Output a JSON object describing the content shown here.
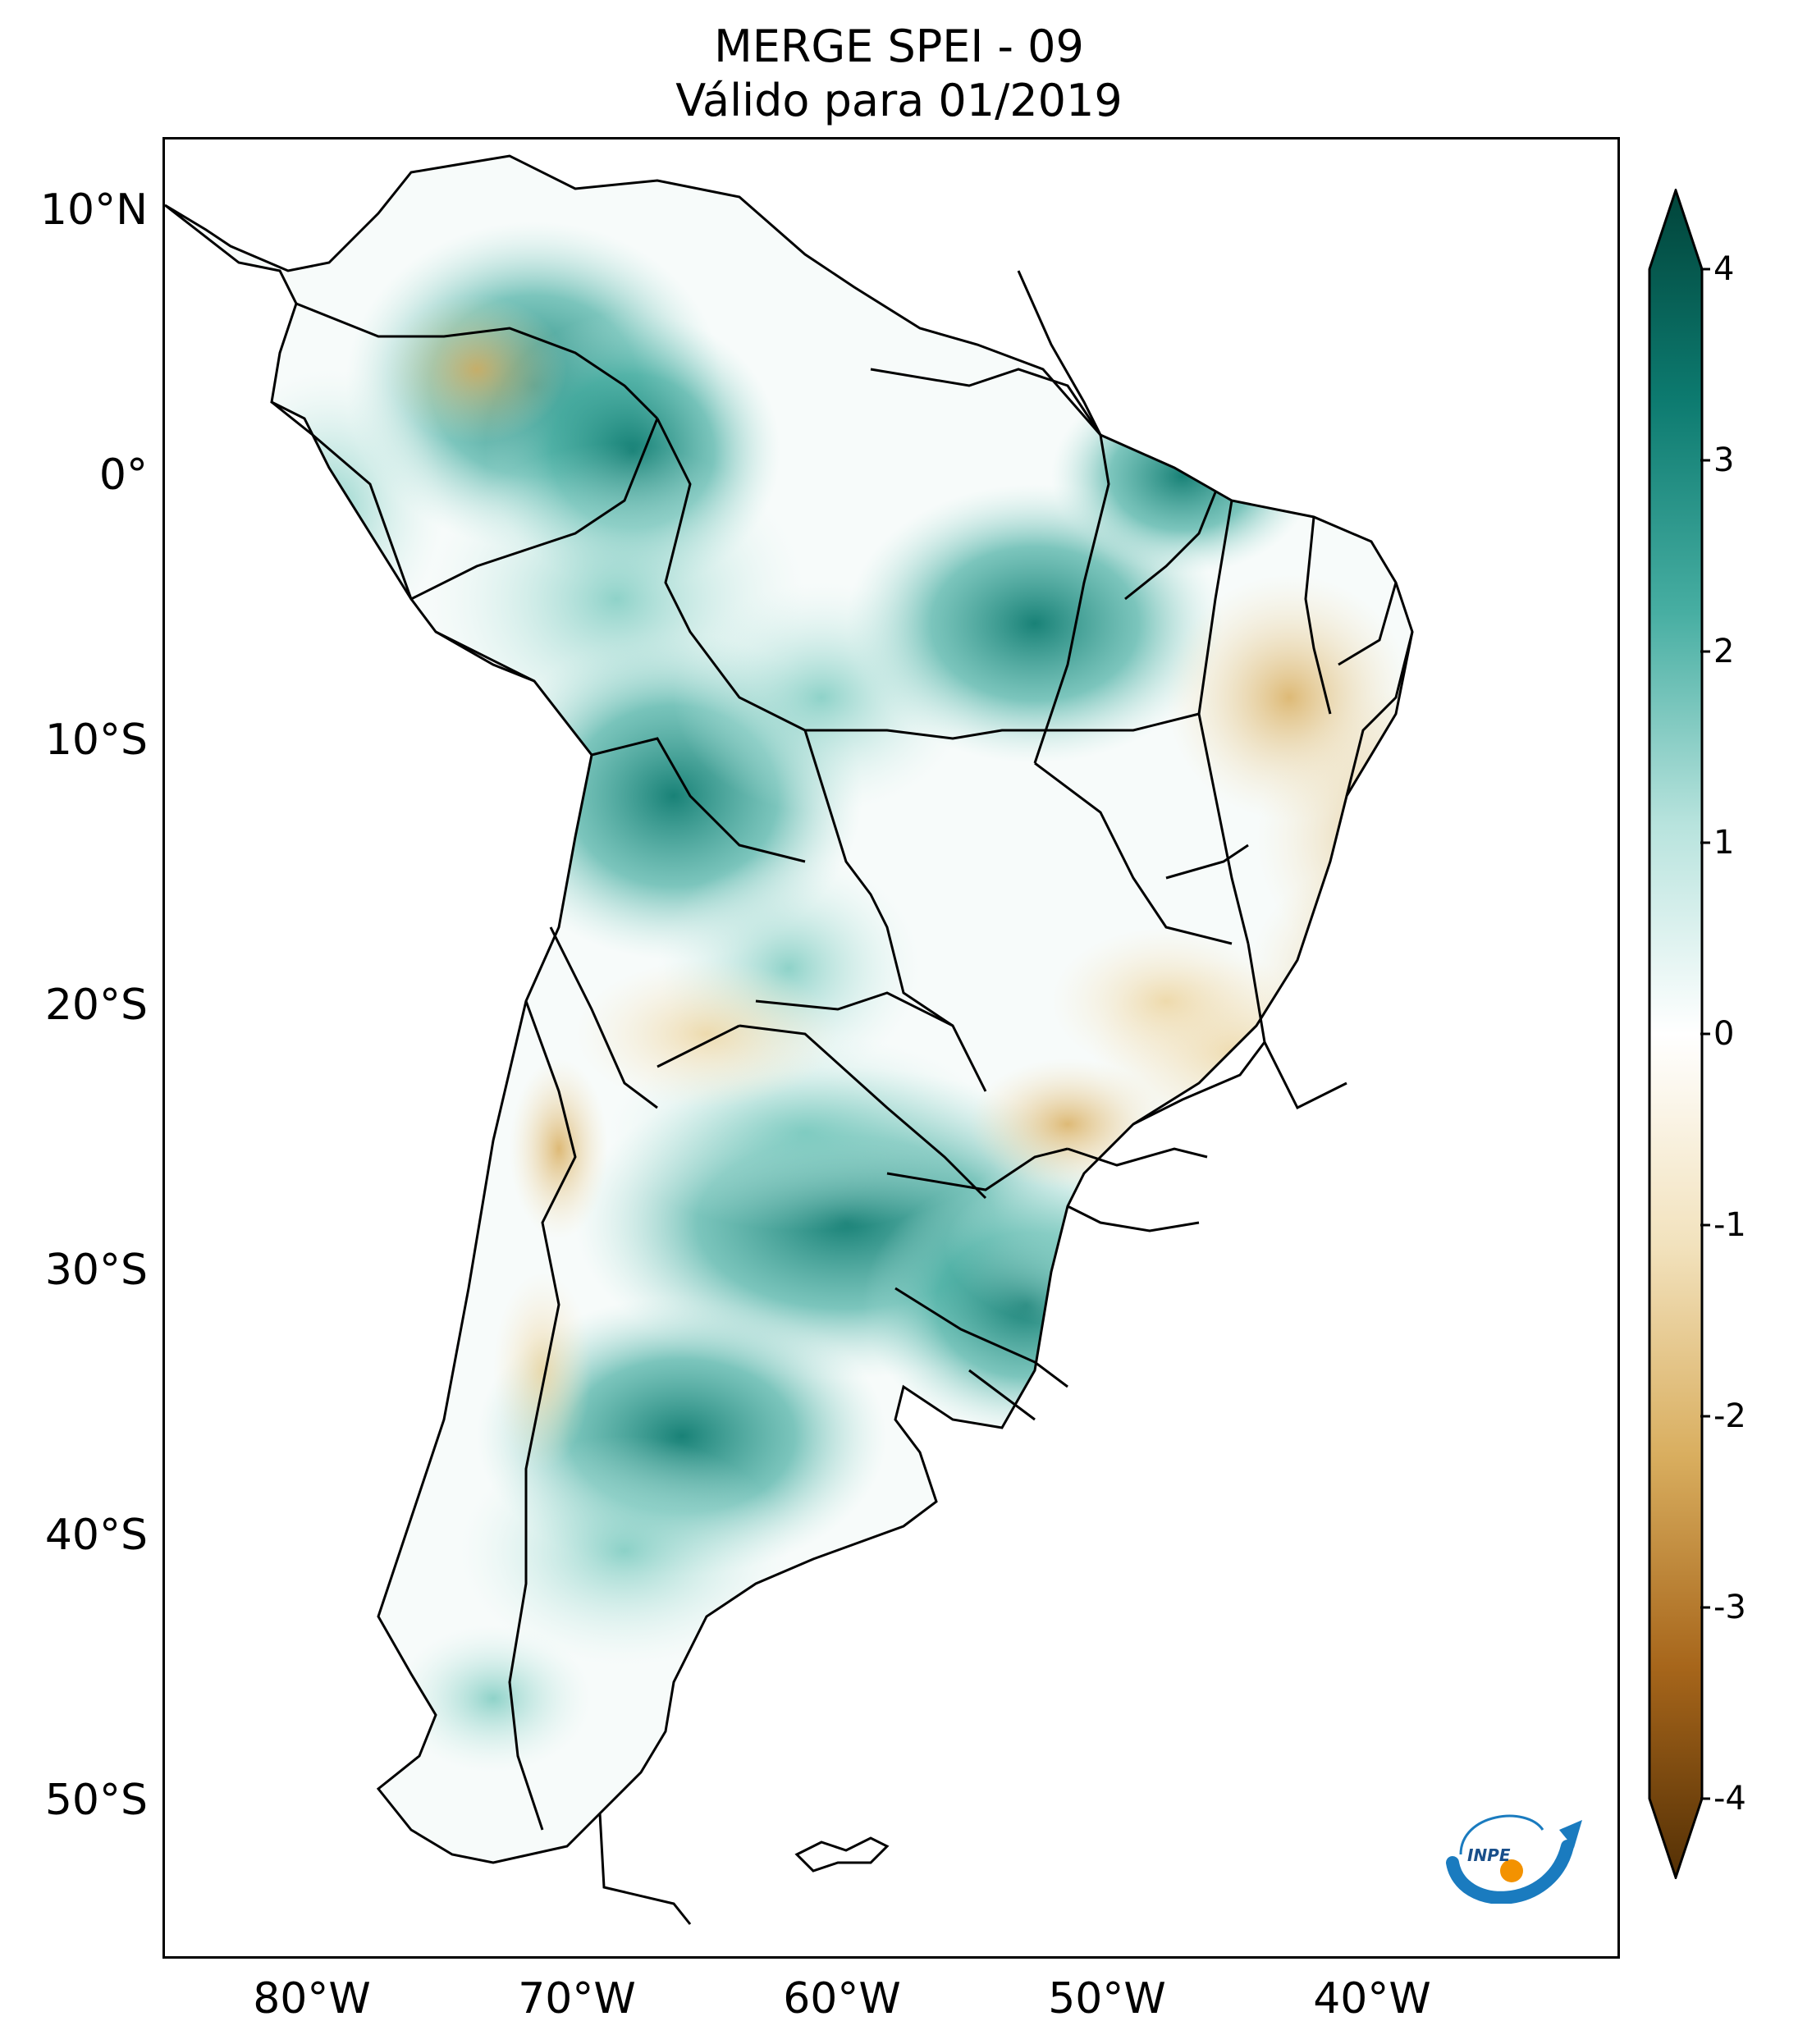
{
  "title": {
    "line1": "MERGE   SPEI - 09",
    "line2": "Válido para 01/2019"
  },
  "axes": {
    "lat_ticks": [
      "10°N",
      "0°",
      "10°S",
      "20°S",
      "30°S",
      "40°S",
      "50°S"
    ],
    "lon_ticks": [
      "80°W",
      "70°W",
      "60°W",
      "50°W",
      "40°W"
    ]
  },
  "colorbar": {
    "ticks": [
      "4",
      "3",
      "2",
      "1",
      "0",
      "-1",
      "-2",
      "-3",
      "-4"
    ],
    "colors": {
      "wet_max": "#01443a",
      "wet_high": "#0d7b70",
      "wet_mid": "#47aea2",
      "wet_low": "#b7e3dd",
      "neutral": "#ffffff",
      "dry_low": "#f2e2bd",
      "dry_mid": "#d9ae5f",
      "dry_high": "#a7661b",
      "dry_max": "#543005"
    }
  },
  "logo": {
    "text": "INPE"
  }
}
